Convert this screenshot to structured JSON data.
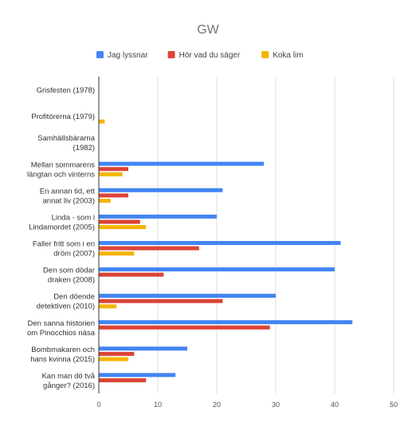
{
  "chart_data": {
    "type": "bar",
    "orientation": "horizontal",
    "title": "GW",
    "xlabel": "",
    "ylabel": "",
    "xlim": [
      0,
      50
    ],
    "x_ticks": [
      0,
      10,
      20,
      30,
      40,
      50
    ],
    "grid": true,
    "legend_position": "top",
    "categories": [
      [
        "Grisfesten (1978)"
      ],
      [
        "Profitörerna (1979)"
      ],
      [
        "Samhällsbärarna",
        "(1982)"
      ],
      [
        "Mellan sommarens",
        "längtan och vinterns"
      ],
      [
        "En annan tid, ett",
        "annat liv (2003)"
      ],
      [
        "Linda - som i",
        "Lindamordet (2005)"
      ],
      [
        "Faller fritt som i en",
        "dröm (2007)"
      ],
      [
        "Den som dödar",
        "draken (2008)"
      ],
      [
        "Den döende",
        "detektiven (2010)"
      ],
      [
        "Den sanna historien",
        "om Pinocchios näsa"
      ],
      [
        "Bombmakaren och",
        "hans kvinna (2015)"
      ],
      [
        "Kan man dö två",
        "gånger? (2016)"
      ]
    ],
    "series": [
      {
        "name": "Jag lyssnar",
        "color": "#4285f4",
        "values": [
          0,
          0,
          0,
          28,
          21,
          20,
          41,
          40,
          30,
          43,
          15,
          13
        ]
      },
      {
        "name": "Hör vad du säger",
        "color": "#db4437",
        "values": [
          0,
          0,
          0,
          5,
          5,
          7,
          17,
          11,
          21,
          29,
          6,
          8
        ]
      },
      {
        "name": "Koka lim",
        "color": "#f4b400",
        "values": [
          0,
          1,
          0,
          4,
          2,
          8,
          6,
          0,
          3,
          0,
          5,
          0
        ]
      }
    ]
  }
}
